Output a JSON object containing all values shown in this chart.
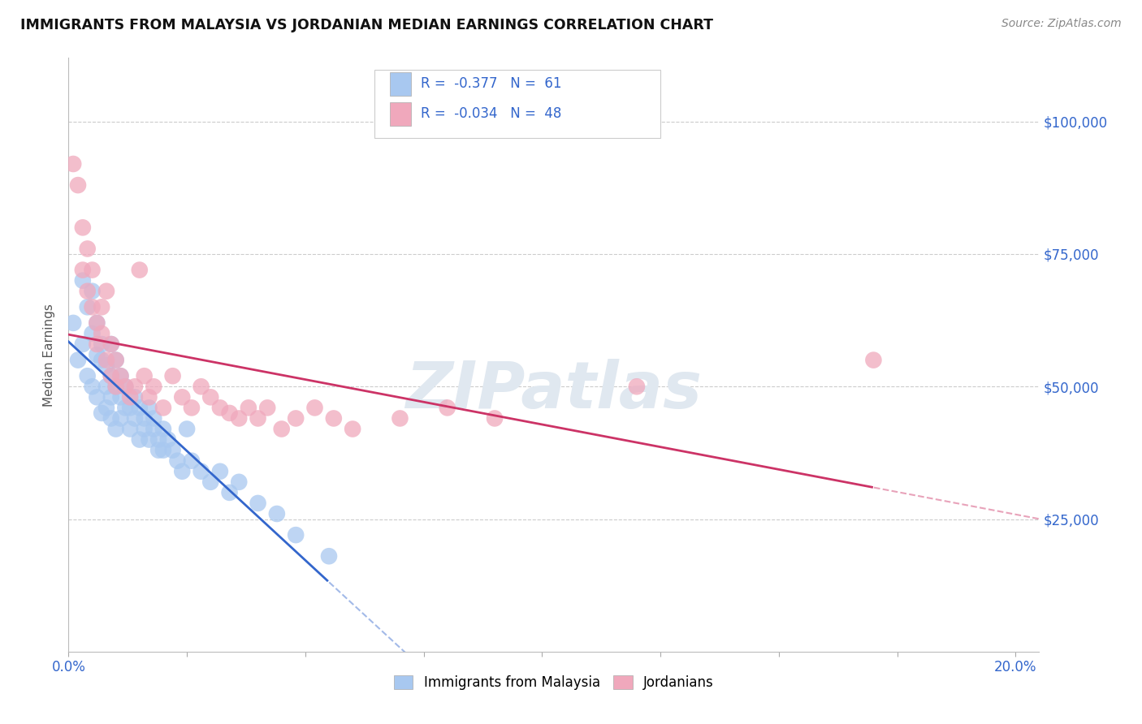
{
  "title": "IMMIGRANTS FROM MALAYSIA VS JORDANIAN MEDIAN EARNINGS CORRELATION CHART",
  "source": "Source: ZipAtlas.com",
  "ylabel": "Median Earnings",
  "y_tick_labels": [
    "$25,000",
    "$50,000",
    "$75,000",
    "$100,000"
  ],
  "y_tick_values": [
    25000,
    50000,
    75000,
    100000
  ],
  "ylim": [
    0,
    112000
  ],
  "xlim": [
    0.0,
    0.205
  ],
  "r_malaysia": -0.377,
  "n_malaysia": 61,
  "r_jordanian": -0.034,
  "n_jordanian": 48,
  "legend_label_1": "Immigrants from Malaysia",
  "legend_label_2": "Jordanians",
  "color_malaysia": "#a8c8f0",
  "color_jordanian": "#f0a8bc",
  "line_color_malaysia": "#3366cc",
  "line_color_jordanian": "#cc3366",
  "watermark_color": "#e0e8f0",
  "text_color_blue": "#3366cc",
  "grid_color": "#cccccc",
  "malaysia_x": [
    0.001,
    0.002,
    0.003,
    0.003,
    0.004,
    0.004,
    0.005,
    0.005,
    0.005,
    0.006,
    0.006,
    0.006,
    0.007,
    0.007,
    0.007,
    0.008,
    0.008,
    0.008,
    0.009,
    0.009,
    0.009,
    0.009,
    0.01,
    0.01,
    0.01,
    0.011,
    0.011,
    0.011,
    0.012,
    0.012,
    0.013,
    0.013,
    0.014,
    0.014,
    0.015,
    0.015,
    0.016,
    0.016,
    0.017,
    0.017,
    0.018,
    0.018,
    0.019,
    0.019,
    0.02,
    0.02,
    0.021,
    0.022,
    0.023,
    0.024,
    0.025,
    0.026,
    0.028,
    0.03,
    0.032,
    0.034,
    0.036,
    0.04,
    0.044,
    0.048,
    0.055
  ],
  "malaysia_y": [
    62000,
    55000,
    70000,
    58000,
    65000,
    52000,
    60000,
    50000,
    68000,
    56000,
    48000,
    62000,
    55000,
    45000,
    58000,
    54000,
    46000,
    50000,
    52000,
    44000,
    58000,
    48000,
    50000,
    42000,
    55000,
    48000,
    52000,
    44000,
    50000,
    46000,
    46000,
    42000,
    48000,
    44000,
    46000,
    40000,
    44000,
    42000,
    46000,
    40000,
    44000,
    42000,
    40000,
    38000,
    42000,
    38000,
    40000,
    38000,
    36000,
    34000,
    42000,
    36000,
    34000,
    32000,
    34000,
    30000,
    32000,
    28000,
    26000,
    22000,
    18000
  ],
  "jordanian_x": [
    0.001,
    0.002,
    0.003,
    0.003,
    0.004,
    0.004,
    0.005,
    0.005,
    0.006,
    0.006,
    0.007,
    0.007,
    0.008,
    0.008,
    0.009,
    0.009,
    0.01,
    0.01,
    0.011,
    0.012,
    0.013,
    0.014,
    0.015,
    0.016,
    0.017,
    0.018,
    0.02,
    0.022,
    0.024,
    0.026,
    0.028,
    0.03,
    0.032,
    0.034,
    0.036,
    0.038,
    0.04,
    0.042,
    0.045,
    0.048,
    0.052,
    0.056,
    0.06,
    0.07,
    0.08,
    0.09,
    0.12,
    0.17
  ],
  "jordanian_y": [
    92000,
    88000,
    80000,
    72000,
    76000,
    68000,
    72000,
    65000,
    62000,
    58000,
    65000,
    60000,
    68000,
    55000,
    58000,
    52000,
    55000,
    50000,
    52000,
    50000,
    48000,
    50000,
    72000,
    52000,
    48000,
    50000,
    46000,
    52000,
    48000,
    46000,
    50000,
    48000,
    46000,
    45000,
    44000,
    46000,
    44000,
    46000,
    42000,
    44000,
    46000,
    44000,
    42000,
    44000,
    46000,
    44000,
    50000,
    55000
  ]
}
